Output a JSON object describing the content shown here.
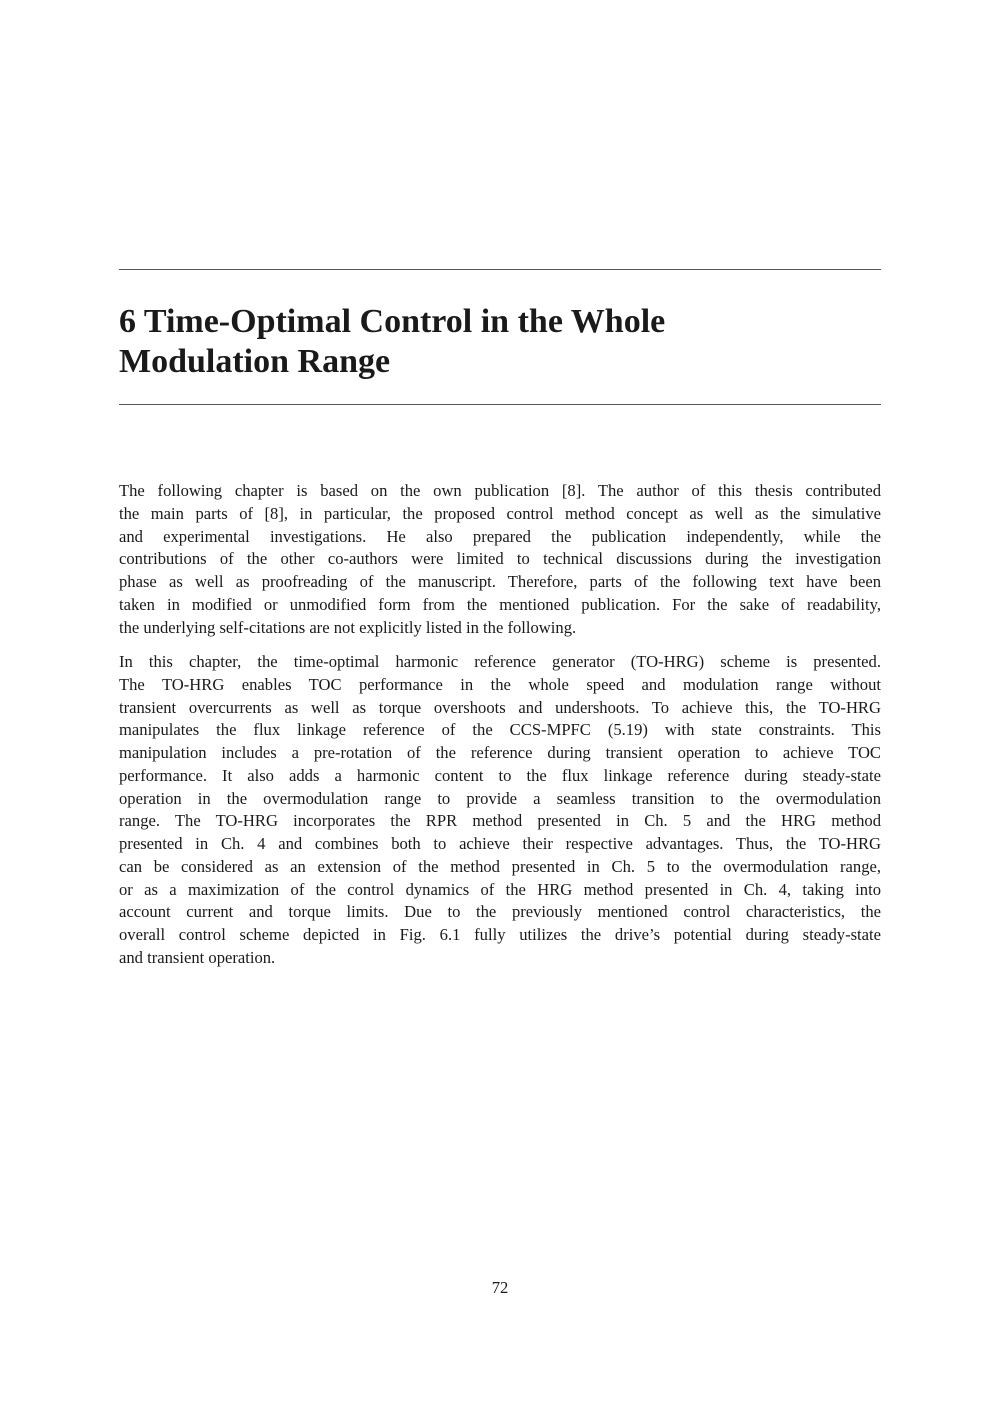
{
  "chapter": {
    "number": "6",
    "title_lines": [
      "6 Time-Optimal Control in the Whole",
      "Modulation Range"
    ]
  },
  "paragraphs": [
    [
      "The following chapter is based on the own publication [8]. The author of this thesis contributed",
      "the main parts of [8], in particular, the proposed control method concept as well as the simulative",
      "and experimental investigations. He also prepared the publication independently, while the",
      "contributions of the other co-authors were limited to technical discussions during the investigation",
      "phase as well as proofreading of the manuscript. Therefore, parts of the following text have been",
      "taken in modified or unmodified form from the mentioned publication. For the sake of readability,",
      "the underlying self-citations are not explicitly listed in the following."
    ],
    [
      "In this chapter, the time-optimal harmonic reference generator (TO-HRG) scheme is presented.",
      "The TO-HRG enables TOC performance in the whole speed and modulation range without",
      "transient overcurrents as well as torque overshoots and undershoots. To achieve this, the TO-HRG",
      "manipulates the flux linkage reference of the CCS-MPFC (5.19) with state constraints. This",
      "manipulation includes a pre-rotation of the reference during transient operation to achieve TOC",
      "performance. It also adds a harmonic content to the flux linkage reference during steady-state",
      "operation in the overmodulation range to provide a seamless transition to the overmodulation",
      "range. The TO-HRG incorporates the RPR method presented in Ch. 5 and the HRG method",
      "presented in Ch. 4 and combines both to achieve their respective advantages. Thus, the TO-HRG",
      "can be considered as an extension of the method presented in Ch. 5 to the overmodulation range,",
      "or as a maximization of the control dynamics of the HRG method presented in Ch. 4, taking into",
      "account current and torque limits. Due to the previously mentioned control characteristics, the",
      "overall control scheme depicted in Fig. 6.1 fully utilizes the drive’s potential during steady-state",
      "and transient operation."
    ]
  ],
  "page_number": "72"
}
